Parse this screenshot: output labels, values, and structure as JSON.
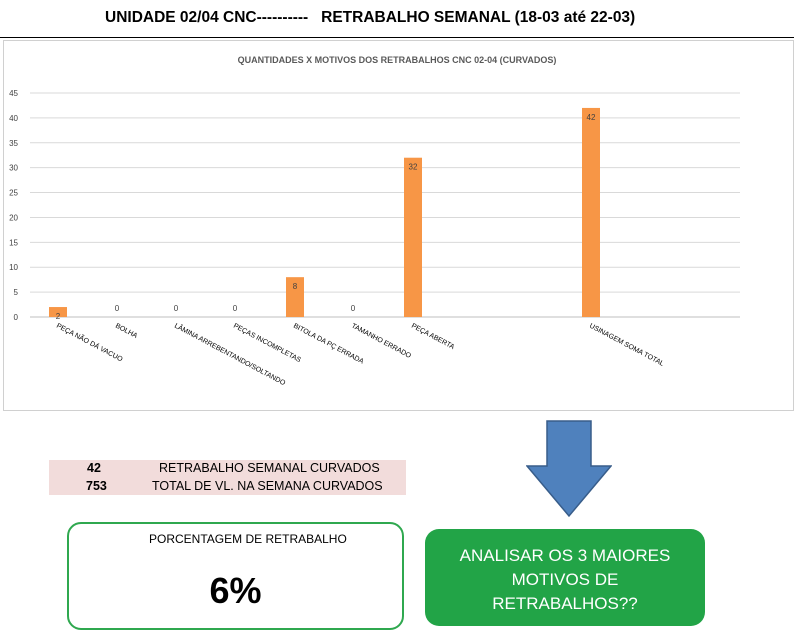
{
  "header": {
    "title": "UNIDADE 02/04 CNC----------   RETRABALHO SEMANAL (18-03 até 22-03)"
  },
  "chart_data": {
    "type": "bar",
    "title": "QUANTIDADES X MOTIVOS DOS RETRABALHOS CNC 02-04 (CURVADOS)",
    "categories": [
      "PEÇA NÃO DÁ VACUO",
      "BOLHA",
      "LÂMINA ARREBENTANDO/SOLTANDO",
      "PEÇAS INCOMPLETAS",
      "BITOLA DA PÇ ERRADA",
      "TAMANHO ERRADO",
      "PEÇA ABERTA",
      "USINAGEM SOMA TOTAL"
    ],
    "values": [
      2,
      0,
      0,
      0,
      8,
      0,
      32,
      42
    ],
    "data_labels": [
      "2",
      "0",
      "0",
      "0",
      "8",
      "0",
      "32",
      "42"
    ],
    "ylim": [
      0,
      45
    ],
    "yticks": [
      "0",
      "5",
      "10",
      "15",
      "20",
      "25",
      "30",
      "35",
      "40",
      "45"
    ],
    "grid": true,
    "bar_color": "#f79646",
    "xlabel": "",
    "ylabel": ""
  },
  "summary": {
    "rows": [
      {
        "number": "42",
        "text": "RETRABALHO SEMANAL CURVADOS"
      },
      {
        "number": "753",
        "text": "TOTAL DE VL. NA SEMANA CURVADOS"
      }
    ]
  },
  "percent_box": {
    "label": "PORCENTAGEM DE RETRABALHO",
    "value": "6%"
  },
  "callout": {
    "line1": "ANALISAR OS 3 MAIORES",
    "line2": "MOTIVOS DE",
    "line3": "RETRABALHOS??"
  },
  "colors": {
    "accent_green": "#22a447",
    "border_green": "#2fa84f",
    "arrow_blue": "#4f81bd",
    "summary_bg": "#f2dcdb"
  },
  "icons": {
    "arrow": "down-arrow-icon"
  }
}
